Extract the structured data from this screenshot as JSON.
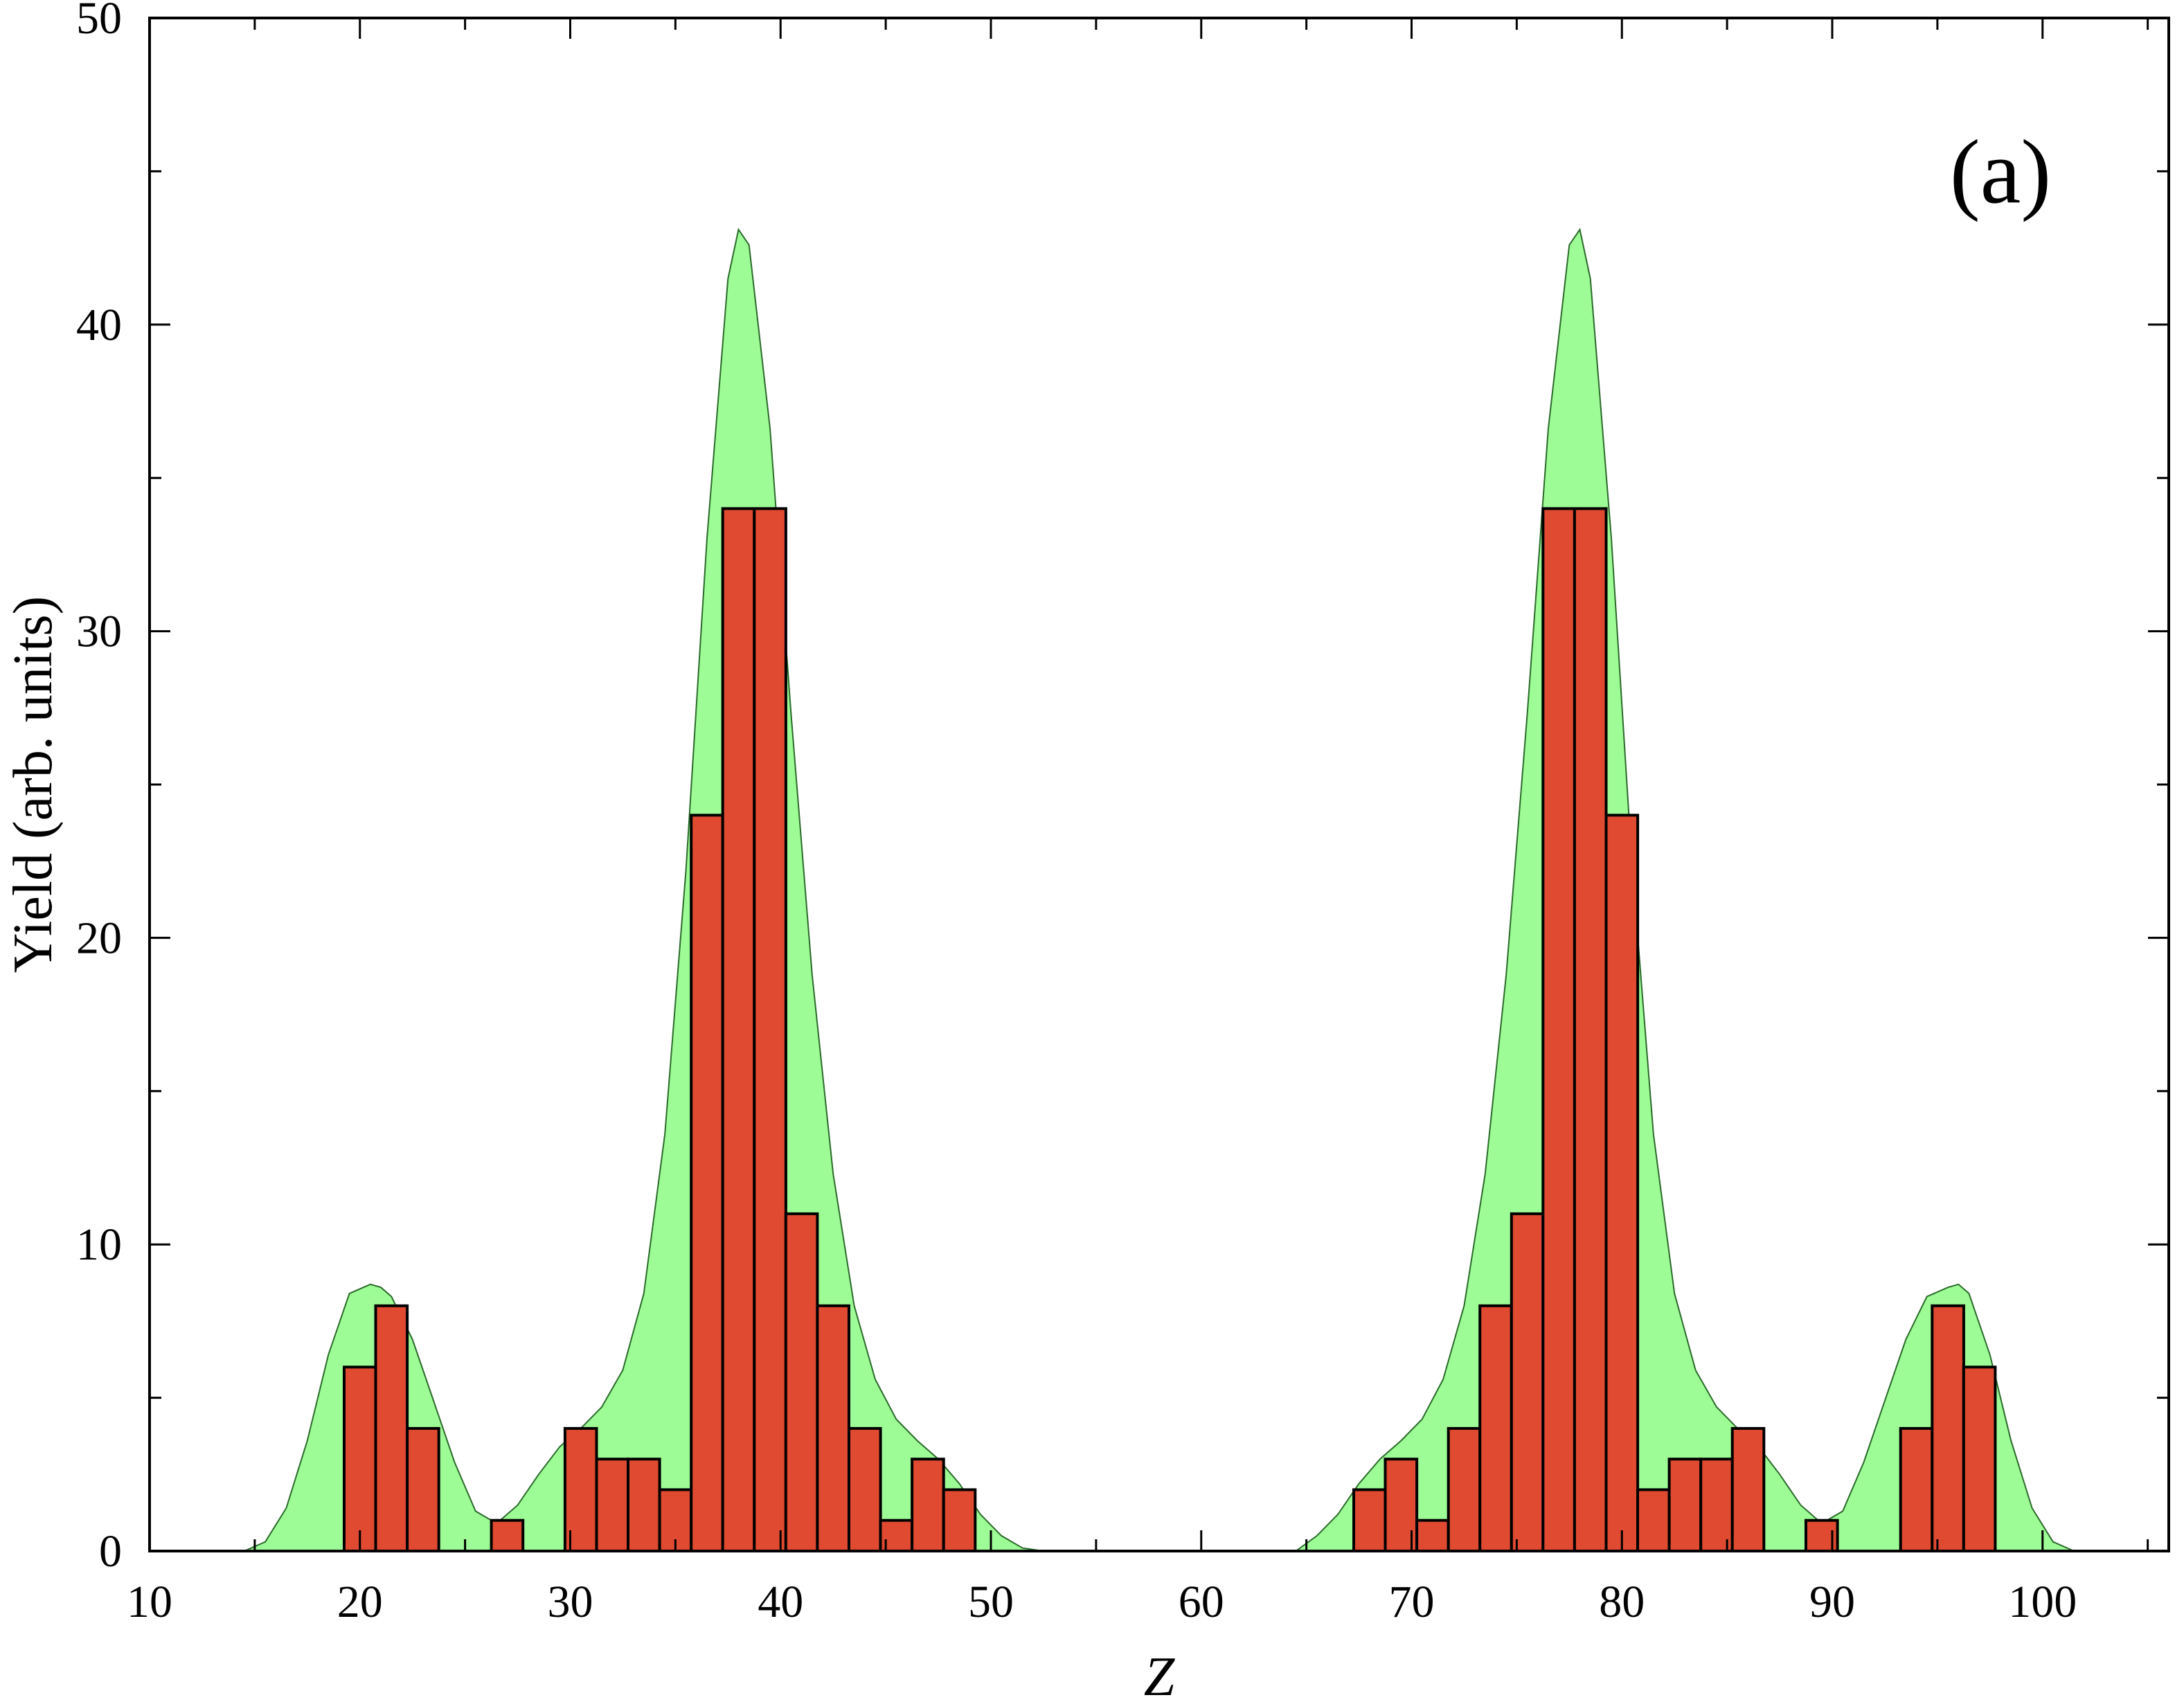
{
  "chart_data": {
    "type": "bar",
    "xlabel": "Z",
    "ylabel": "Yield (arb. units)",
    "annotation": "(a)",
    "xlim": [
      10,
      106
    ],
    "ylim": [
      0,
      50
    ],
    "x_ticks": [
      10,
      20,
      30,
      40,
      50,
      60,
      70,
      80,
      90,
      100
    ],
    "y_ticks": [
      0,
      10,
      20,
      30,
      40,
      50
    ],
    "grid": false,
    "colors": {
      "bars": "#e04a30",
      "bar_edge": "#000000",
      "fill": "#9efc96",
      "fill_edge": "#2a6a2a"
    },
    "series": [
      {
        "kind": "bar",
        "x": [
          20,
          21.5,
          23,
          27,
          30.5,
          32,
          33.5,
          35,
          36.5,
          38,
          39.5,
          41,
          42.5,
          44,
          45.5,
          47,
          48.5,
          68,
          69.5,
          71,
          72.5,
          74,
          75.5,
          77,
          78.5,
          80,
          81.5,
          83,
          84.5,
          86,
          89.5,
          94,
          95.5,
          97
        ],
        "values": [
          6,
          8,
          4,
          1,
          4,
          3,
          3,
          2,
          24,
          34,
          34,
          11,
          8,
          4,
          1,
          3,
          2,
          2,
          3,
          1,
          4,
          8,
          11,
          34,
          34,
          24,
          2,
          3,
          3,
          4,
          1,
          4,
          8,
          6
        ]
      },
      {
        "kind": "area",
        "x": [
          14.5,
          15.5,
          16.5,
          17.5,
          18.5,
          19.5,
          20.5,
          21,
          21.5,
          22.5,
          23.5,
          24.5,
          25.5,
          26.5,
          27.5,
          28.5,
          29.5,
          30.5,
          31.5,
          32.5,
          33.5,
          34.5,
          35.5,
          36.5,
          37.5,
          38,
          38.5,
          39.5,
          40.5,
          41.5,
          42.5,
          43.5,
          44.5,
          45.5,
          46.5,
          47.5,
          48.5,
          49.5,
          50.5,
          51.5,
          52.5,
          64.5,
          65.5,
          66.5,
          67.5,
          68.5,
          69.5,
          70.5,
          71.5,
          72.5,
          73.5,
          74.5,
          75.5,
          76.5,
          77.5,
          78,
          78.5,
          79.5,
          80.5,
          81.5,
          82.5,
          83.5,
          84.5,
          85.5,
          86.5,
          87.5,
          88.5,
          89.5,
          90.5,
          91.5,
          92.5,
          93.5,
          94.5,
          95.5,
          96,
          96.5,
          97.5,
          98.5,
          99.5,
          100.5,
          101.5
        ],
        "values": [
          0,
          0.3,
          1.4,
          3.6,
          6.4,
          8.4,
          8.7,
          8.6,
          8.3,
          6.9,
          4.9,
          2.9,
          1.3,
          0.9,
          1.5,
          2.5,
          3.4,
          4.0,
          4.7,
          5.9,
          8.4,
          13.6,
          22.2,
          33.0,
          41.5,
          43.1,
          42.6,
          36.6,
          27.3,
          18.8,
          12.3,
          8.0,
          5.6,
          4.3,
          3.6,
          3.0,
          2.2,
          1.2,
          0.5,
          0.1,
          0,
          0,
          0.5,
          1.2,
          2.2,
          3.0,
          3.6,
          4.3,
          5.6,
          8.0,
          12.3,
          18.8,
          27.3,
          36.6,
          42.6,
          43.1,
          41.5,
          33.0,
          22.2,
          13.6,
          8.4,
          5.9,
          4.7,
          4.0,
          3.4,
          2.5,
          1.5,
          0.9,
          1.3,
          2.9,
          4.9,
          6.9,
          8.3,
          8.6,
          8.7,
          8.4,
          6.4,
          3.6,
          1.4,
          0.3,
          0
        ]
      }
    ]
  }
}
